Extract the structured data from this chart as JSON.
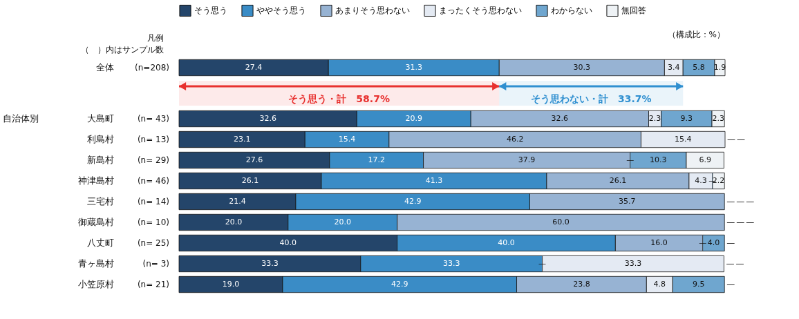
{
  "chart_data": {
    "type": "bar",
    "orientation": "horizontal",
    "stacked": true,
    "legend": "top",
    "categories": [
      "全体",
      "大島町",
      "利島村",
      "新島村",
      "神津島村",
      "三宅村",
      "御蔵島村",
      "八丈町",
      "青ヶ島村",
      "小笠原村"
    ],
    "series": [
      {
        "name": "そう思う",
        "color": "#24456a",
        "values": [
          27.4,
          32.6,
          23.1,
          27.6,
          26.1,
          21.4,
          20.0,
          40.0,
          33.3,
          19.0
        ],
        "value_labels": [
          "27.4",
          "32.6",
          "23.1",
          "27.6",
          "26.1",
          "21.4",
          "20.0",
          "40.0",
          "33.3",
          "19.0"
        ]
      },
      {
        "name": "ややそう思う",
        "color": "#3a8cc6",
        "values": [
          31.3,
          20.9,
          15.4,
          17.2,
          41.3,
          42.9,
          20.0,
          40.0,
          33.3,
          42.9
        ],
        "value_labels": [
          "31.3",
          "20.9",
          "15.4",
          "17.2",
          "41.3",
          "42.9",
          "20.0",
          "40.0",
          "33.3",
          "42.9"
        ]
      },
      {
        "name": "あまりそう思わない",
        "color": "#97b3d3",
        "values": [
          30.3,
          32.6,
          46.2,
          37.9,
          26.1,
          35.7,
          60.0,
          16.0,
          0,
          23.8
        ],
        "value_labels": [
          "30.3",
          "32.6",
          "46.2",
          "37.9",
          "26.1",
          "35.7",
          "60.0",
          "16.0",
          "—",
          "23.8"
        ]
      },
      {
        "name": "まったくそう思わない",
        "color": "#e4eaf3",
        "values": [
          3.4,
          2.3,
          15.4,
          0,
          4.3,
          0,
          0,
          0,
          33.3,
          4.8
        ],
        "value_labels": [
          "3.4",
          "2.3",
          "15.4",
          "—",
          "4.3",
          "—",
          "—",
          "—",
          "33.3",
          "4.8"
        ]
      },
      {
        "name": "わからない",
        "color": "#6fa6cf",
        "values": [
          5.8,
          9.3,
          0,
          10.3,
          0,
          0,
          0,
          4.0,
          0,
          9.5
        ],
        "value_labels": [
          "5.8",
          "9.3",
          "—",
          "10.3",
          "—",
          "—",
          "—",
          "4.0",
          "—",
          "9.5"
        ]
      },
      {
        "name": "無回答",
        "color": "#eef2f5",
        "values": [
          1.9,
          2.3,
          0,
          6.9,
          2.2,
          0,
          0,
          0,
          0,
          0
        ],
        "value_labels": [
          "1.9",
          "2.3",
          "—",
          "6.9",
          "2.2",
          "—",
          "—",
          "—",
          "—",
          "—"
        ]
      }
    ],
    "bands": [
      {
        "axis": "x",
        "from": 0,
        "to": 58.7,
        "label": "そう思う・計　58.7%",
        "color": "#e8302e"
      },
      {
        "axis": "x",
        "from": 58.7,
        "to": 92.4,
        "label": "そう思わない・計　33.7%",
        "color": "#2f8fd0"
      }
    ],
    "annotations": [
      "（構成比：%）",
      "凡例",
      "（　）内はサンプル数",
      "自治体別",
      "(n=208)",
      "(n= 43)",
      "(n= 13)",
      "(n= 29)",
      "(n= 46)",
      "(n= 14)",
      "(n= 10)",
      "(n= 25)",
      "(n= 3)",
      "(n= 21)"
    ]
  }
}
